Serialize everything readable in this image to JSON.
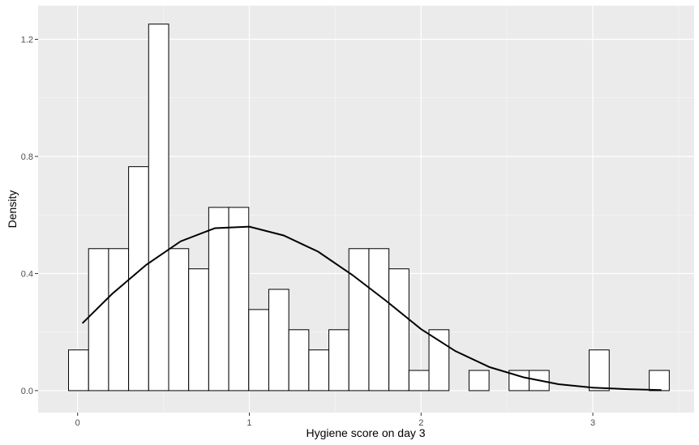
{
  "chart_data": {
    "type": "bar",
    "xlabel": "Hygiene score on day 3",
    "ylabel": "Density",
    "xlim": [
      -0.23,
      3.59
    ],
    "ylim": [
      -0.075,
      1.315
    ],
    "x_ticks": [
      {
        "value": 0,
        "label": "0"
      },
      {
        "value": 1,
        "label": "1"
      },
      {
        "value": 2,
        "label": "2"
      },
      {
        "value": 3,
        "label": "3"
      }
    ],
    "y_ticks": [
      {
        "value": 0.0,
        "label": "0.0"
      },
      {
        "value": 0.4,
        "label": "0.4"
      },
      {
        "value": 0.8,
        "label": "0.8"
      },
      {
        "value": 1.2,
        "label": "1.2"
      }
    ],
    "bin_width": 0.1166,
    "bin_start": -0.0528,
    "densities": [
      0.139,
      0.485,
      0.485,
      0.765,
      1.252,
      0.485,
      0.416,
      0.626,
      0.626,
      0.277,
      0.346,
      0.208,
      0.139,
      0.208,
      0.485,
      0.485,
      0.416,
      0.069,
      0.208,
      0.0,
      0.069,
      0.0,
      0.069,
      0.069,
      0.0,
      0.0,
      0.139,
      0.0,
      0.0,
      0.069
    ],
    "density_curve": {
      "x": [
        0.028,
        0.2,
        0.4,
        0.6,
        0.8,
        1.0,
        1.2,
        1.4,
        1.6,
        1.8,
        2.0,
        2.2,
        2.4,
        2.6,
        2.8,
        3.0,
        3.2,
        3.4
      ],
      "y": [
        0.23,
        0.33,
        0.43,
        0.51,
        0.555,
        0.56,
        0.53,
        0.475,
        0.395,
        0.305,
        0.21,
        0.135,
        0.08,
        0.045,
        0.022,
        0.01,
        0.005,
        0.002
      ]
    },
    "grid": true,
    "colors": {
      "panel_background": "#ebebeb",
      "grid_major": "#ffffff",
      "bar_fill": "#ffffff",
      "bar_stroke": "#000000",
      "curve": "#000000",
      "tick_label": "#4d4d4d"
    }
  }
}
